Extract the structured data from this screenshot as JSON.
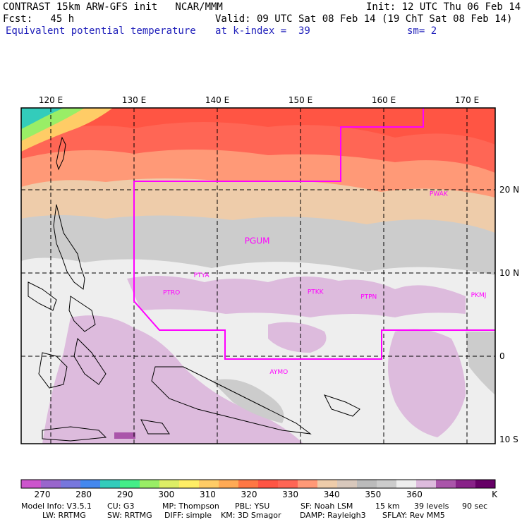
{
  "header": {
    "title": "CONTRAST 15km ARW-GFS init   NCAR/MMM",
    "init": "Init: 12 UTC Thu 06 Feb 14",
    "fcst": "Fcst:   45 h",
    "valid": "Valid: 09 UTC Sat 08 Feb 14 (19 ChT Sat 08 Feb 14)",
    "field": "Equivalent potential temperature",
    "level": "at k-index =  39",
    "smooth": "sm= 2"
  },
  "map": {
    "lon_labels": [
      "120 E",
      "130 E",
      "140 E",
      "150 E",
      "160 E",
      "170 E"
    ],
    "lat_labels": [
      "20 N",
      "10 N",
      "0",
      "10 S"
    ],
    "stations": [
      {
        "id": "PGUM",
        "lon": 144.8,
        "lat": 13.5
      },
      {
        "id": "PTYA",
        "lon": 138.1,
        "lat": 9.5
      },
      {
        "id": "PTRO",
        "lon": 134.5,
        "lat": 7.4
      },
      {
        "id": "PTKK",
        "lon": 151.8,
        "lat": 7.5
      },
      {
        "id": "PTPN",
        "lon": 158.2,
        "lat": 6.9
      },
      {
        "id": "PKMJ",
        "lon": 171.4,
        "lat": 7.1
      },
      {
        "id": "PWAK",
        "lon": 166.6,
        "lat": 19.3
      },
      {
        "id": "AYMO",
        "lon": 147.4,
        "lat": -2.1
      }
    ]
  },
  "colorbar": {
    "labels": [
      "270",
      "280",
      "290",
      "300",
      "310",
      "320",
      "330",
      "340",
      "350",
      "360"
    ],
    "unit": "K",
    "colors": [
      "#cc55cc",
      "#9966cc",
      "#7777dd",
      "#4488ee",
      "#33ccbb",
      "#44ee88",
      "#99ee66",
      "#ddee66",
      "#ffee66",
      "#ffcc66",
      "#ffaa55",
      "#ff7744",
      "#ff5544",
      "#ff6655",
      "#ff9977",
      "#eeccaa",
      "#d8c8bc",
      "#bbbbbb",
      "#cccccc",
      "#eeeeee",
      "#ddbbdd",
      "#aa55aa",
      "#882288",
      "#660066"
    ]
  },
  "footer": {
    "line1": [
      "Model Info: V3.5.1",
      "CU: G3",
      "MP: Thompson",
      "PBL: YSU",
      "SF: Noah LSM",
      "15 km",
      "39 levels",
      "90 sec"
    ],
    "line2": [
      "LW: RRTMG",
      "SW: RRTMG",
      "DIFF: simple",
      "KM: 3D Smagor",
      "DAMP: Rayleigh3",
      "SFLAY: Rev MM5"
    ]
  }
}
